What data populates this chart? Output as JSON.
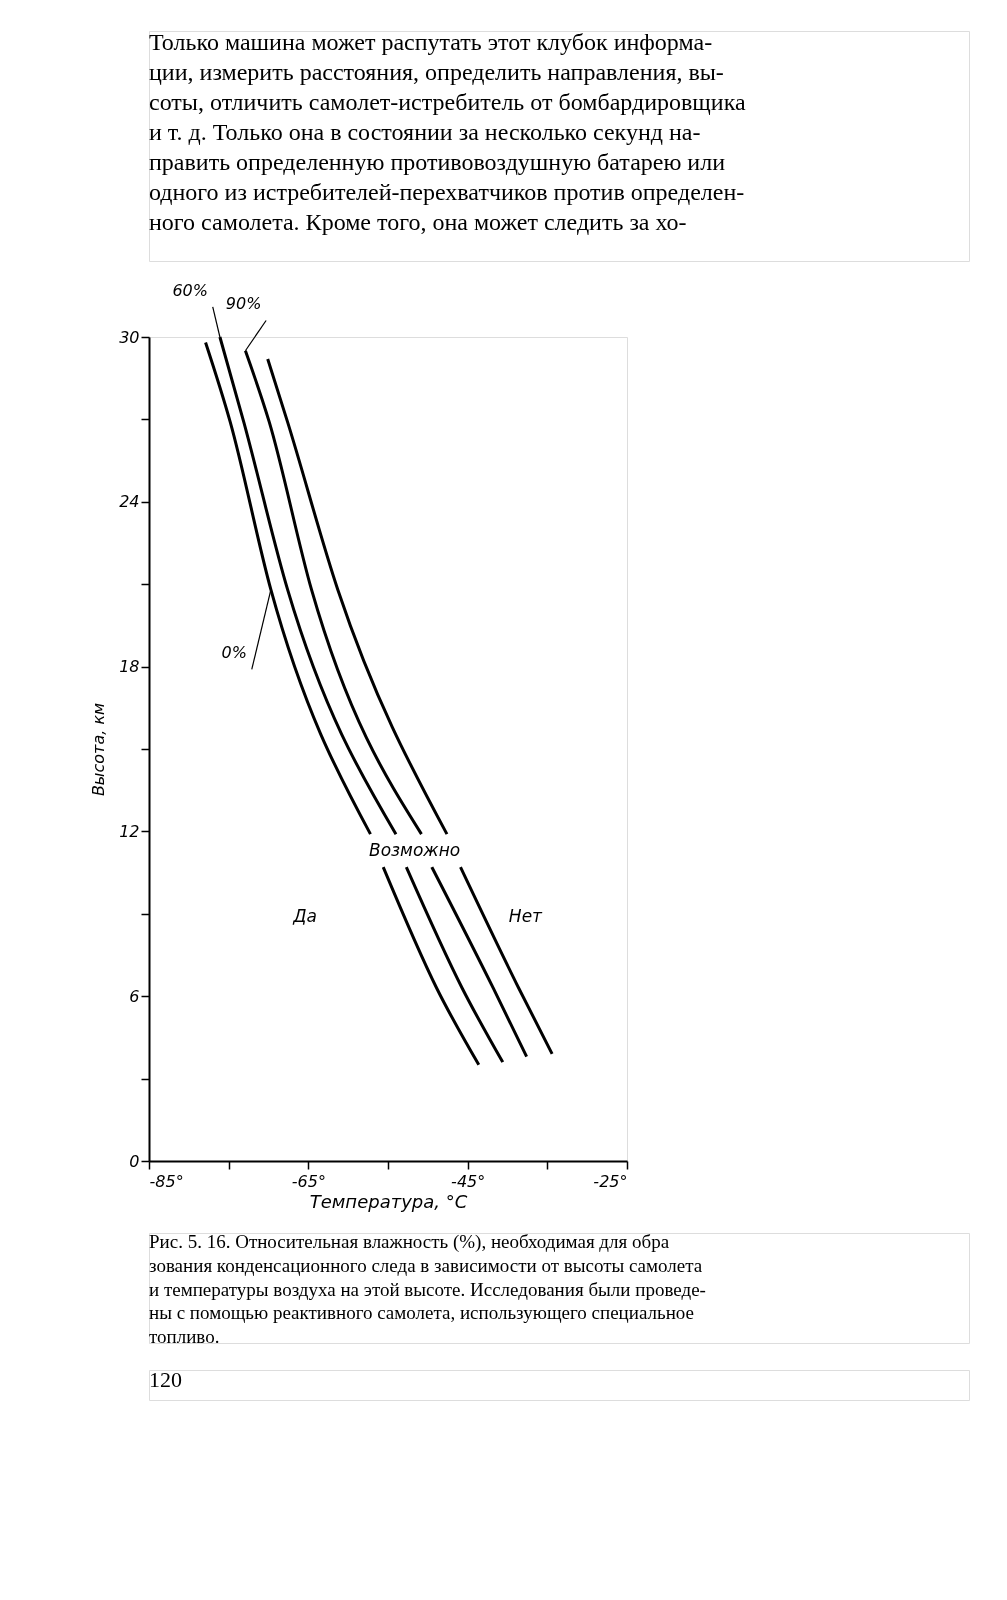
{
  "chart_data": {
    "type": "line",
    "xlabel": "Температура, °C",
    "ylabel": "Высота, км",
    "xlim": [
      -85,
      -25
    ],
    "ylim": [
      0,
      30
    ],
    "xticks": [
      {
        "value": -85,
        "label": "-85°"
      },
      {
        "value": -75,
        "label": null
      },
      {
        "value": -65,
        "label": "-65°"
      },
      {
        "value": -55,
        "label": null
      },
      {
        "value": -45,
        "label": "-45°"
      },
      {
        "value": -35,
        "label": null
      },
      {
        "value": -25,
        "label": "-25°"
      }
    ],
    "yticks": [
      0,
      {
        "value": 3,
        "label": null
      },
      6,
      {
        "value": 9,
        "label": null
      },
      12,
      {
        "value": 15,
        "label": null
      },
      18,
      {
        "value": 21,
        "label": null
      },
      24,
      {
        "value": 27,
        "label": null
      },
      30
    ],
    "grid": false,
    "marker": "none",
    "line_style": "solid",
    "series": [
      {
        "name": "0%",
        "color": "#000000",
        "x": [
          -77.9,
          -74.8,
          -69.7,
          -57.2,
          null,
          -55.6,
          -48.9,
          -43.6
        ],
        "values": [
          29.8,
          26.9,
          20.8,
          11.9,
          null,
          10.7,
          6.3,
          3.5
        ]
      },
      {
        "name": "60%",
        "color": "#000000",
        "x": [
          -76.1,
          -73.1,
          -67.6,
          -54.0,
          null,
          -52.7,
          -45.7,
          -40.6
        ],
        "values": [
          30.0,
          26.9,
          20.8,
          11.9,
          null,
          10.7,
          6.3,
          3.6
        ]
      },
      {
        "name": "90%",
        "color": "#000000",
        "x": [
          -72.9,
          -69.9,
          -64.6,
          -50.8,
          null,
          -49.5,
          -41.8,
          -37.6
        ],
        "values": [
          29.5,
          26.9,
          20.8,
          11.9,
          null,
          10.7,
          6.3,
          3.8
        ]
      },
      {
        "color": "#000000",
        "x": [
          -70.1,
          -67.6,
          -61.3,
          -47.6,
          null,
          -45.9,
          -38.6,
          -34.4
        ],
        "values": [
          29.2,
          26.9,
          20.8,
          11.9,
          null,
          10.7,
          6.3,
          3.9
        ]
      }
    ],
    "annotations": [
      "Только машина может распутать этот клубок информа-\nции, измерить расстояния, определить направления, вы-\nсоты, отличить самолет-истребитель от бомбардировщика\nи т. д. Только она в состоянии за несколько секунд на-\nправить определенную противовоздушную батарею или\nодного из истребителей-перехватчиков против определен-\nного самолета. Кроме того, она может следить за хо-",
      "Рис. 5. 16. Относительная влажность (%), необходимая для обра\nзования конденсационного следа в зависимости от высоты самолета\nи температуры воздуха на этой высоте. Исследования были проведе-\nны с помощью реактивного самолета, использующего специальное\nтопливо.",
      "120",
      "Возможно",
      "Да",
      "Нет"
    ]
  }
}
